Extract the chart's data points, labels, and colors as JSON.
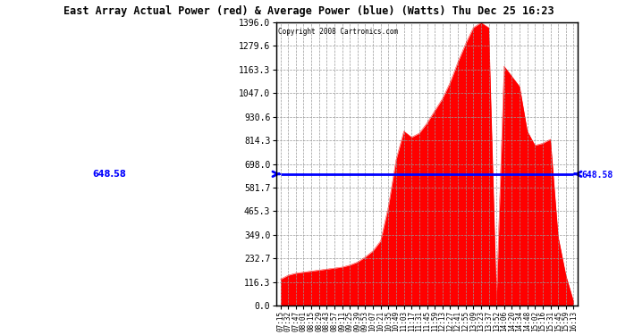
{
  "title": "East Array Actual Power (red) & Average Power (blue) (Watts) Thu Dec 25 16:23",
  "copyright": "Copyright 2008 Cartronics.com",
  "average_power": 648.58,
  "ymax": 1396.0,
  "ymin": 0.0,
  "yticks": [
    0.0,
    116.3,
    232.7,
    349.0,
    465.3,
    581.7,
    698.0,
    814.3,
    930.6,
    1047.0,
    1163.3,
    1279.6,
    1396.0
  ],
  "background_color": "#ffffff",
  "fill_color": "#ff0000",
  "line_color": "#0000ff",
  "grid_color": "#999999",
  "time_labels": [
    "07:15",
    "07:32",
    "07:47",
    "08:01",
    "08:15",
    "08:29",
    "08:43",
    "08:57",
    "09:11",
    "09:25",
    "09:39",
    "09:53",
    "10:07",
    "10:21",
    "10:35",
    "10:49",
    "11:03",
    "11:17",
    "11:31",
    "11:45",
    "11:59",
    "12:13",
    "12:27",
    "12:41",
    "12:55",
    "13:09",
    "13:23",
    "13:37",
    "13:52",
    "14:06",
    "14:20",
    "14:34",
    "14:48",
    "15:02",
    "15:16",
    "15:31",
    "15:45",
    "15:59",
    "16:13"
  ],
  "power_values": [
    130,
    150,
    160,
    165,
    170,
    175,
    180,
    185,
    190,
    200,
    215,
    240,
    270,
    320,
    490,
    720,
    860,
    830,
    850,
    900,
    960,
    1020,
    1100,
    1200,
    1290,
    1370,
    1395,
    1370,
    30,
    1180,
    1130,
    1080,
    860,
    790,
    800,
    820,
    340,
    150,
    20
  ]
}
